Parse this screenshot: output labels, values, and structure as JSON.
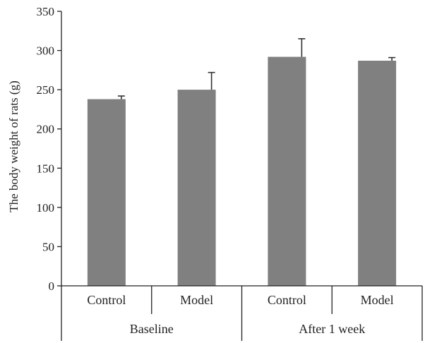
{
  "chart_data": {
    "type": "bar",
    "title": "",
    "xlabel": "",
    "ylabel": "The body weight of rats (g)",
    "ylim": [
      0,
      350
    ],
    "yticks": [
      0,
      50,
      100,
      150,
      200,
      250,
      300,
      350
    ],
    "grid": false,
    "legend": "none",
    "bar_color": "#808080",
    "groups": [
      {
        "label": "Baseline",
        "categories": [
          "Control",
          "Model"
        ]
      },
      {
        "label": "After 1 week",
        "categories": [
          "Control",
          "Model"
        ]
      }
    ],
    "categories": [
      "Control",
      "Model",
      "Control",
      "Model"
    ],
    "values": [
      238,
      250,
      292,
      287
    ],
    "error_plus": [
      4,
      22,
      23,
      4
    ]
  }
}
